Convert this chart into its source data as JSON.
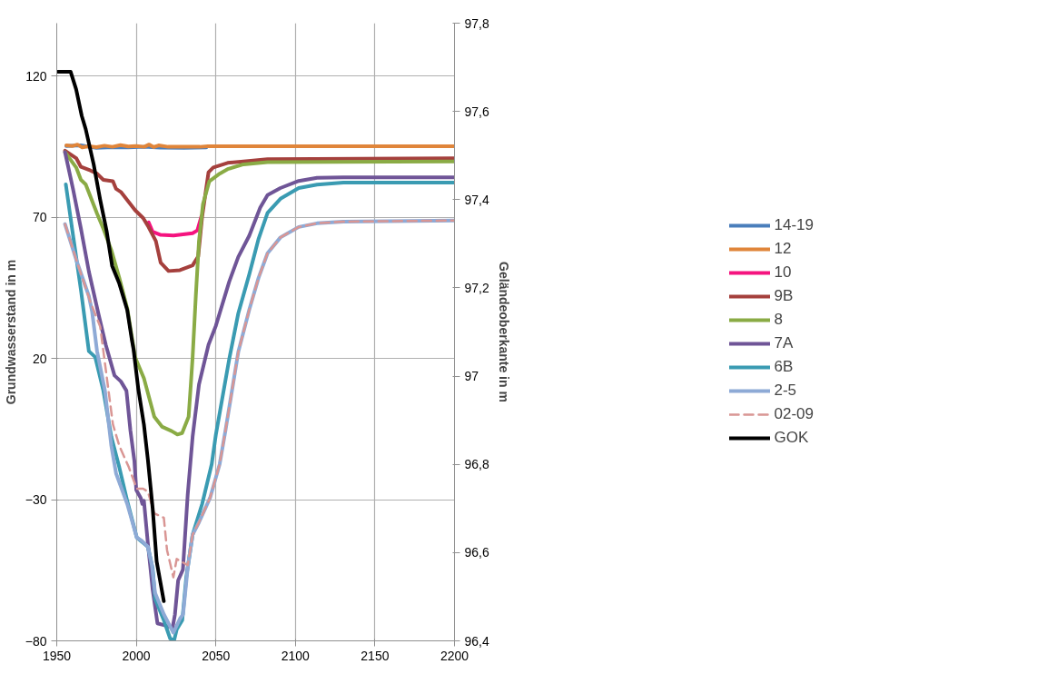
{
  "chart_data": {
    "type": "line",
    "ylabel": "Grundwasserstand in m",
    "y2label": "Geländeoberkante in m",
    "xlim": [
      1950,
      2200
    ],
    "xticks": [
      1950,
      2000,
      2050,
      2100,
      2150,
      2200
    ],
    "ylim": [
      -80,
      138.8
    ],
    "yticks": [
      -80,
      -30,
      20,
      70,
      120
    ],
    "y2lim": [
      96.4,
      97.8
    ],
    "y2ticks": [
      {
        "value": 96.4,
        "label": "96,4"
      },
      {
        "value": 96.6,
        "label": "96,6"
      },
      {
        "value": 96.8,
        "label": "96,8"
      },
      97,
      {
        "value": 97.2,
        "label": "97,2"
      },
      {
        "value": 97.4,
        "label": "97,4"
      },
      {
        "value": 97.6,
        "label": "97,6"
      },
      {
        "value": 97.8,
        "label": "97,8"
      }
    ],
    "grid": true,
    "legend": "right",
    "line_style": "solid",
    "series": [
      {
        "name": "14-19",
        "color": "#4a7ebb",
        "x": [
          1956,
          1965,
          1975,
          1985,
          1995,
          2005,
          2015,
          2030,
          2044
        ],
        "values": [
          95.3,
          95.5,
          94.6,
          94.9,
          94.8,
          95.0,
          94.7,
          94.6,
          94.8
        ]
      },
      {
        "name": "12",
        "color": "#e0853a",
        "x": [
          1956,
          1960,
          1963,
          1966,
          1970,
          1975,
          1980,
          1985,
          1990,
          1995,
          2000,
          2005,
          2008,
          2011,
          2014,
          2020,
          2040,
          2045,
          2200
        ],
        "values": [
          95.5,
          95.3,
          95.8,
          94.8,
          95.2,
          94.9,
          95.4,
          95.0,
          95.6,
          95.1,
          95.3,
          95.0,
          95.8,
          94.9,
          95.5,
          95.0,
          95.0,
          95.2,
          95.2
        ]
      },
      {
        "name": "10",
        "color": "#f5137f",
        "x": [
          2007.8,
          2010.3,
          2015.3,
          2023.4,
          2035.4,
          2038.4,
          2040.9
        ],
        "values": [
          68.2,
          64.9,
          63.8,
          63.6,
          64.4,
          65.4,
          70.3
        ]
      },
      {
        "name": "9B",
        "color": "#a5403d",
        "x": [
          1955.2,
          1962.2,
          1965.2,
          1971.2,
          1975.3,
          1979.3,
          1985.3,
          1987.3,
          1990.3,
          1999.3,
          2004.3,
          2007.3,
          2012.3,
          2015.3,
          2020.3,
          2027.4,
          2035.4,
          2038.9,
          2041.4,
          2045.4,
          2048.4,
          2057.4,
          2067.4,
          2082.5,
          2200
        ],
        "values": [
          93.6,
          91,
          87.9,
          86.6,
          85.5,
          83.3,
          82.8,
          80.1,
          79,
          72.5,
          69.8,
          67,
          61.6,
          54,
          51,
          51.3,
          53,
          56.2,
          70.3,
          86,
          87.7,
          89.3,
          89.8,
          90.6,
          90.9
        ]
      },
      {
        "name": "8",
        "color": "#8aab45",
        "x": [
          1955.2,
          1962.2,
          1965.2,
          1968.2,
          1975.3,
          1979.3,
          1984.3,
          1989.3,
          1994.3,
          1999.3,
          2004.8,
          2011.3,
          2016.3,
          2022.3,
          2025.8,
          2028.8,
          2032.9,
          2034.4,
          2035.4,
          2037.4,
          2039.4,
          2041.9,
          2045.9,
          2052.4,
          2057.4,
          2067.4,
          2082.5,
          2200
        ],
        "values": [
          93.1,
          87.7,
          83.3,
          81.7,
          71.4,
          66,
          58.4,
          48.6,
          37.8,
          20.4,
          13,
          -0.6,
          -4.2,
          -5.7,
          -6.9,
          -6.4,
          -0.6,
          11.9,
          20.4,
          42.1,
          61.6,
          74.7,
          82.8,
          85.5,
          87.1,
          88.8,
          89.6,
          89.8
        ]
      },
      {
        "name": "7A",
        "color": "#6f5597",
        "x": [
          1955.2,
          1960.2,
          1965.2,
          1970.2,
          1976.3,
          1980.8,
          1986.3,
          1990.3,
          1993.8,
          1996.3,
          1998.8,
          2000,
          2002.8,
          2003.8,
          2004.8,
          2007.3,
          2010.3,
          2013.3,
          2017.3,
          2022.8,
          2024.3,
          2026.3,
          2029.3,
          2032.3,
          2035.4,
          2039.4,
          2045.4,
          2050,
          2058.4,
          2064.1,
          2071,
          2077.9,
          2082.5,
          2090.6,
          2102.1,
          2113.6,
          2130.2,
          2200
        ],
        "values": [
          93.1,
          80.1,
          66,
          50.8,
          35.6,
          24.9,
          14,
          11.9,
          8.6,
          -5.5,
          -16.3,
          -26.6,
          -29.4,
          -31.5,
          -30.4,
          -45.6,
          -61.9,
          -73.8,
          -74.4,
          -75.4,
          -70.6,
          -58.6,
          -54.8,
          -28.3,
          -7.7,
          10.8,
          24.9,
          31.6,
          47.2,
          56,
          63.5,
          73.5,
          77.9,
          80.4,
          82.9,
          84,
          84.2,
          84.2
        ]
      },
      {
        "name": "6B",
        "color": "#3a9bb2",
        "x": [
          1955.7,
          1960.2,
          1965.2,
          1970.2,
          1974.2,
          1979.3,
          1984.3,
          1989.3,
          1994.3,
          2000.3,
          2007.3,
          2010.3,
          2011.8,
          2017.3,
          2021.3,
          2023.8,
          2025.4,
          2028.9,
          2031.4,
          2035.4,
          2041.4,
          2047.4,
          2050,
          2058.4,
          2064.1,
          2071,
          2076.8,
          2082.5,
          2090.6,
          2102.1,
          2113.6,
          2130.2,
          2200
        ],
        "values": [
          81.7,
          63.8,
          44.3,
          22.6,
          20.5,
          8.6,
          -7.7,
          -18.5,
          -30.4,
          -43.4,
          -46.7,
          -54.3,
          -65.1,
          -72.7,
          -79.2,
          -79.8,
          -76,
          -72.7,
          -57.5,
          -42.4,
          -31.5,
          -17.4,
          -7,
          19.8,
          36,
          49.8,
          62.3,
          71.6,
          76.6,
          80.4,
          81.6,
          82.3,
          82.3
        ]
      },
      {
        "name": "2-5",
        "color": "#8eaad6",
        "x": [
          1955.2,
          1962.2,
          1970.2,
          1972.2,
          1975.3,
          1980.3,
          1984.3,
          1987.3,
          1994.3,
          2000.3,
          2003.3,
          2007.3,
          2009.8,
          2011.8,
          2017.3,
          2023.3,
          2027.4,
          2029.4,
          2032.3,
          2035.4,
          2039.4,
          2046.4,
          2052.4,
          2056.1,
          2064.1,
          2071,
          2076.8,
          2082.5,
          2090.6,
          2102.1,
          2113.6,
          2130.2,
          2200
        ],
        "values": [
          67.6,
          55.1,
          42.1,
          36.7,
          22.7,
          8.6,
          -10.9,
          -20.7,
          -31.5,
          -43.4,
          -44.5,
          -46.7,
          -53.2,
          -63,
          -70.6,
          -77.1,
          -72.2,
          -70.6,
          -54.3,
          -42.4,
          -38,
          -29.3,
          -17.4,
          -5.3,
          22.3,
          37.3,
          48.5,
          57.3,
          62.9,
          66.6,
          67.9,
          68.5,
          68.9
        ]
      },
      {
        "name": "02-09",
        "color": "#d99694",
        "line_style": "dashed",
        "x": [
          1955.2,
          1962.2,
          1971.2,
          1977.3,
          1981.3,
          1985.3,
          1989.3,
          1995.3,
          2000.3,
          2004.3,
          2007.3,
          2011.3,
          2017.3,
          2019.3,
          2023.3,
          2025.4,
          2032.3,
          2035.4,
          2039.4,
          2046.4,
          2052.4,
          2056.1,
          2064.1,
          2071,
          2076.8,
          2082.5,
          2090.6,
          2102.1,
          2113.6,
          2130.2,
          2200
        ],
        "values": [
          67.6,
          55.1,
          40,
          31.3,
          14,
          -3.3,
          -10.9,
          -18.5,
          -26.1,
          -26.1,
          -27.2,
          -34.8,
          -36.4,
          -47.8,
          -57.5,
          -51,
          -53.2,
          -42.4,
          -38,
          -29.3,
          -17.4,
          -5.3,
          22.3,
          37.3,
          48.5,
          57.3,
          62.9,
          66.6,
          67.9,
          68.5,
          68.9
        ]
      },
      {
        "name": "GOK",
        "color": "#000000",
        "axis": "y2",
        "x": [
          1950.7,
          1958.7,
          1962.2,
          1965.7,
          1968.2,
          1973.2,
          1977.3,
          1981.3,
          1984.8,
          1989.3,
          1994.3,
          1997.3,
          1998.3,
          2001.3,
          2004.8,
          2007.3,
          2010.3,
          2012.8,
          2017.3
        ],
        "values": [
          97.69,
          97.69,
          97.65,
          97.59,
          97.56,
          97.48,
          97.4,
          97.33,
          97.25,
          97.21,
          97.15,
          97.08,
          97.06,
          96.97,
          96.89,
          96.81,
          96.7,
          96.58,
          96.49
        ]
      }
    ]
  }
}
